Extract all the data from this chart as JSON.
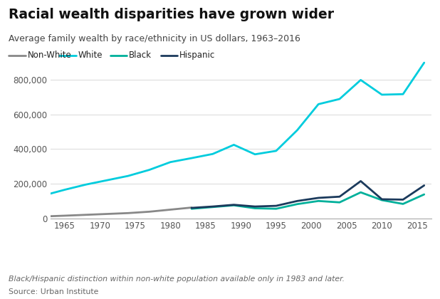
{
  "title": "Racial wealth disparities have grown wider",
  "subtitle": "Average family wealth by race/ethnicity in US dollars, 1963–2016",
  "footnote": "Black/Hispanic distinction within non-white population available only in 1983 and later.",
  "source": "Source: Urban Institute",
  "background_color": "#ffffff",
  "nonwhite_years": [
    1963,
    1965,
    1968,
    1971,
    1974,
    1977,
    1980,
    1983
  ],
  "nonwhite_values": [
    12000,
    15000,
    20000,
    25000,
    30000,
    38000,
    50000,
    62000
  ],
  "white_years": [
    1963,
    1965,
    1968,
    1971,
    1974,
    1977,
    1980,
    1983,
    1986,
    1989,
    1992,
    1995,
    1998,
    2001,
    2004,
    2007,
    2010,
    2013,
    2016
  ],
  "white_values": [
    143000,
    165000,
    195000,
    220000,
    245000,
    280000,
    325000,
    348000,
    372000,
    425000,
    370000,
    390000,
    510000,
    660000,
    690000,
    800000,
    715000,
    718000,
    900000
  ],
  "black_years": [
    1983,
    1986,
    1989,
    1992,
    1995,
    1998,
    2001,
    2004,
    2007,
    2010,
    2013,
    2016
  ],
  "black_values": [
    55000,
    65000,
    75000,
    58000,
    55000,
    82000,
    100000,
    92000,
    150000,
    105000,
    83000,
    138000
  ],
  "hispanic_years": [
    1983,
    1986,
    1989,
    1992,
    1995,
    1998,
    2001,
    2004,
    2007,
    2010,
    2013,
    2016
  ],
  "hispanic_values": [
    60000,
    68000,
    78000,
    68000,
    72000,
    100000,
    118000,
    125000,
    215000,
    110000,
    108000,
    190000
  ],
  "nonwhite_color": "#888888",
  "white_color": "#00ccdd",
  "black_color": "#00b09b",
  "hispanic_color": "#1b3a5c",
  "ylim": [
    0,
    960000
  ],
  "yticks": [
    0,
    200000,
    400000,
    600000,
    800000
  ],
  "xlim": [
    1963,
    2017
  ],
  "xticks": [
    1965,
    1970,
    1975,
    1980,
    1985,
    1990,
    1995,
    2000,
    2005,
    2010,
    2015
  ]
}
